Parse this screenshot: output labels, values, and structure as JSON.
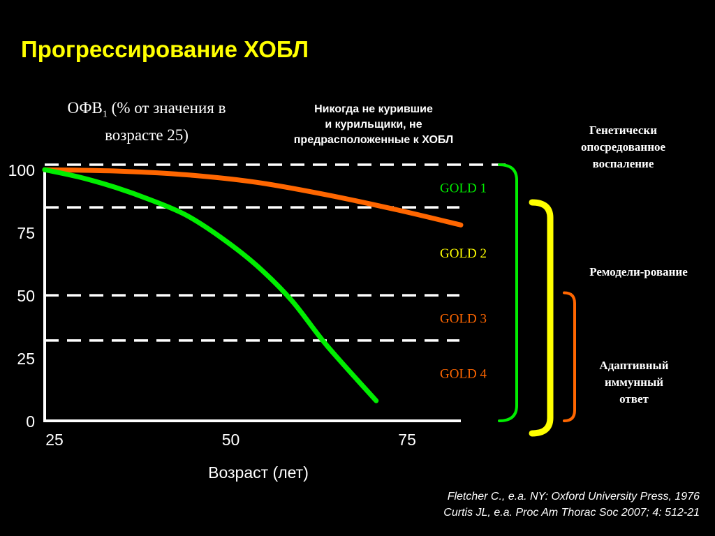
{
  "title": "Прогрессирование ХОБЛ",
  "notes": {
    "top": [
      "Никогда не курившие",
      "и курильщики, не",
      "предрасположенные к ХОБЛ"
    ],
    "genetic": [
      "Генетически",
      "опосредованное",
      "воспаление"
    ],
    "remodeling": "Ремодели-рование",
    "immune": [
      "Адаптивный",
      "иммунный",
      "ответ"
    ]
  },
  "references": [
    "Fletcher C., e.a. NY: Oxford University Press, 1976",
    "Curtis JL, e.a. Proc Am Thorac Soc 2007; 4: 512-21"
  ],
  "chart_data": {
    "type": "line",
    "title": "Прогрессирование ХОБЛ",
    "xlabel": "Возраст (лет)",
    "ylabel_main": "ОФВ",
    "ylabel_sub": "1",
    "ylabel_rest": " (% от значения в",
    "ylabel_line2": "возрасте 25)",
    "xlim": [
      25,
      84
    ],
    "ylim": [
      0,
      102
    ],
    "x_ticks": [
      25,
      50,
      75
    ],
    "y_ticks": [
      0,
      25,
      50,
      75,
      100
    ],
    "series": [
      {
        "color": "#ff6600",
        "x": [
          25,
          35,
          45,
          55,
          65,
          75,
          84
        ],
        "y": [
          100,
          99.5,
          98,
          95,
          90,
          84,
          78
        ]
      },
      {
        "color": "#00ee00",
        "x": [
          25,
          30,
          35,
          40,
          45,
          50,
          55,
          60,
          65,
          72
        ],
        "y": [
          100,
          97,
          93,
          88,
          82,
          73,
          62,
          48,
          30,
          8
        ]
      }
    ],
    "reference_lines": [
      {
        "y": 102,
        "color": "#ffffff"
      },
      {
        "y": 85,
        "color": "#ffffff"
      },
      {
        "y": 50,
        "color": "#ffffff"
      },
      {
        "y": 32,
        "color": "#ffffff"
      }
    ],
    "stages": [
      {
        "label": "GOLD 1",
        "y": 93,
        "color": "#00ee00"
      },
      {
        "label": "GOLD 2",
        "y": 67,
        "color": "#ffff00"
      },
      {
        "label": "GOLD 3",
        "y": 41,
        "color": "#ff6600"
      },
      {
        "label": "GOLD 4",
        "y": 19,
        "color": "#ff6600"
      }
    ],
    "brackets": [
      {
        "color": "#00ee00",
        "y_top": 102,
        "y_bottom": 0
      },
      {
        "color": "#ffff00",
        "y_top": 87,
        "y_bottom": -5
      },
      {
        "color": "#ff6600",
        "y_top": 51,
        "y_bottom": 0
      }
    ]
  }
}
